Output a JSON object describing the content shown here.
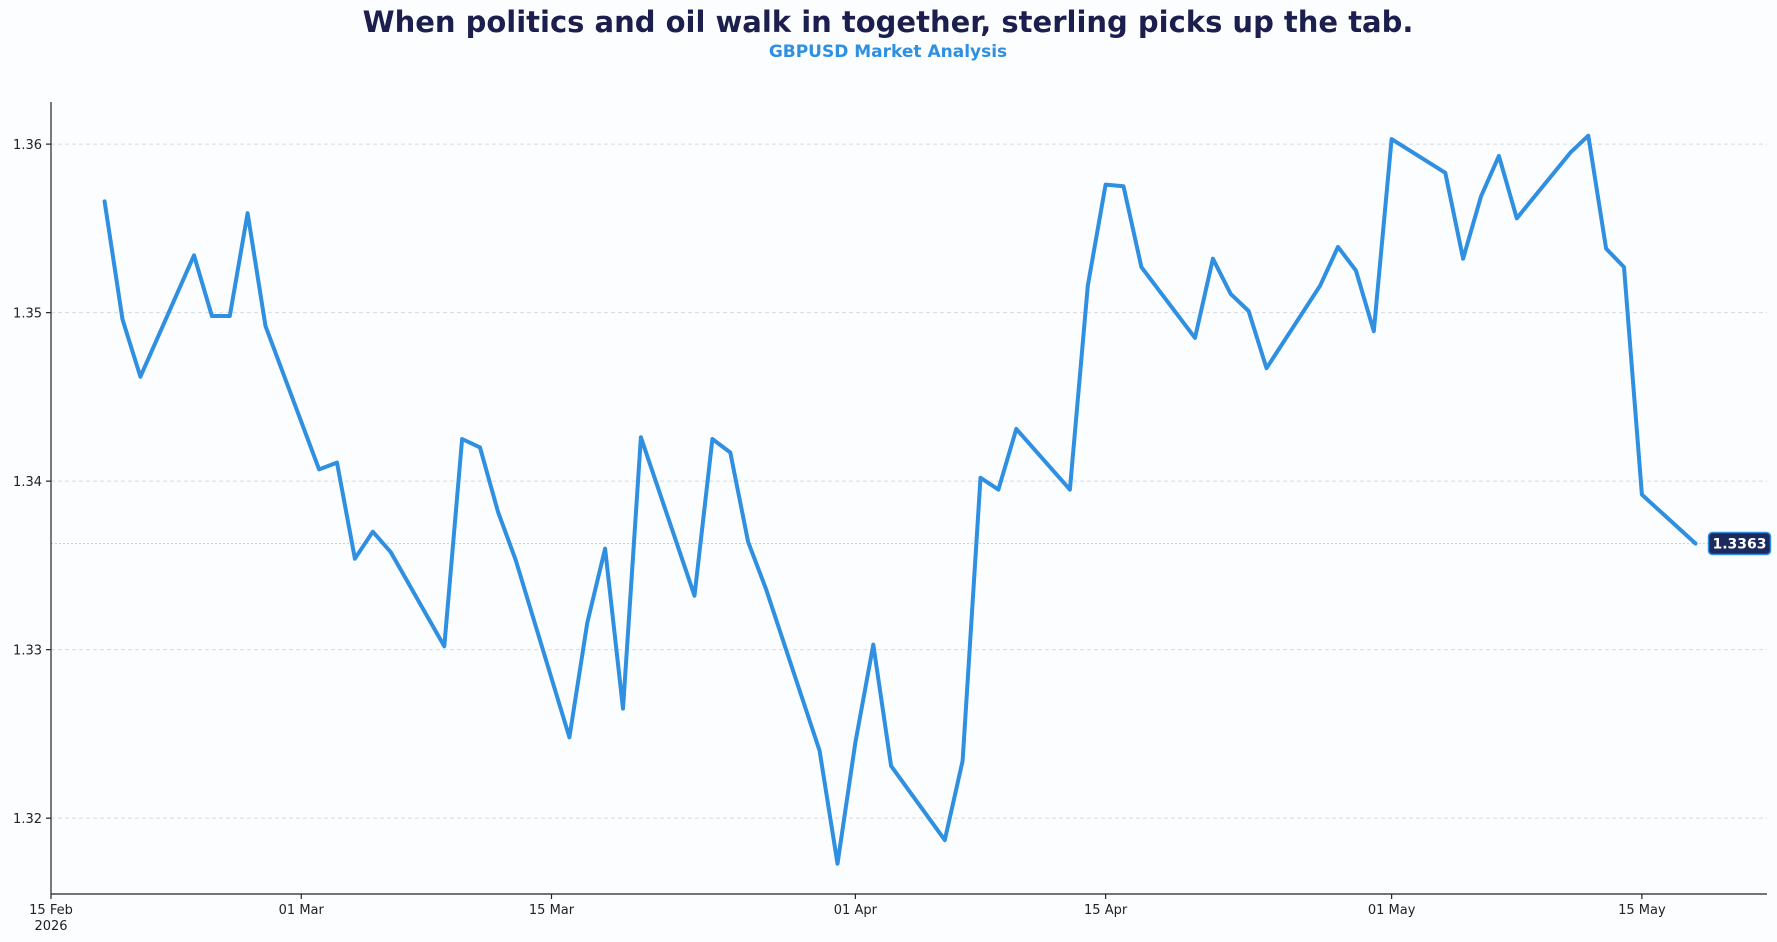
{
  "chart_data": {
    "type": "line",
    "title": "When politics and oil walk in together, sterling picks up the tab.",
    "subtitle": "GBPUSD Market Analysis",
    "xlabel": "",
    "ylabel": "",
    "x_ticks": [
      {
        "date": "2026-02-15",
        "label": "15 Feb",
        "sublabel": "2026"
      },
      {
        "date": "2026-03-01",
        "label": "01 Mar"
      },
      {
        "date": "2026-03-15",
        "label": "15 Mar"
      },
      {
        "date": "2026-04-01",
        "label": "01 Apr"
      },
      {
        "date": "2026-04-15",
        "label": "15 Apr"
      },
      {
        "date": "2026-05-01",
        "label": "01 May"
      },
      {
        "date": "2026-05-15",
        "label": "15 May"
      }
    ],
    "y_ticks": [
      "1.32",
      "1.33",
      "1.34",
      "1.35",
      "1.36"
    ],
    "xlim": [
      "2026-02-15",
      "2026-05-22"
    ],
    "ylim": [
      1.3155,
      1.3625
    ],
    "grid": "horizontal",
    "line_color": "#2f8fe0",
    "last_value_label": "1.3363",
    "series": [
      {
        "x": [
          "2026-02-18",
          "2026-02-19",
          "2026-02-20",
          "2026-02-23",
          "2026-02-24",
          "2026-02-25",
          "2026-02-26",
          "2026-02-27",
          "2026-03-02",
          "2026-03-03",
          "2026-03-04",
          "2026-03-05",
          "2026-03-06",
          "2026-03-09",
          "2026-03-10",
          "2026-03-11",
          "2026-03-12",
          "2026-03-13",
          "2026-03-16",
          "2026-03-17",
          "2026-03-18",
          "2026-03-19",
          "2026-03-20",
          "2026-03-23",
          "2026-03-24",
          "2026-03-25",
          "2026-03-26",
          "2026-03-27",
          "2026-03-30",
          "2026-03-31",
          "2026-04-01",
          "2026-04-02",
          "2026-04-03",
          "2026-04-06",
          "2026-04-07",
          "2026-04-08",
          "2026-04-09",
          "2026-04-10",
          "2026-04-13",
          "2026-04-14",
          "2026-04-15",
          "2026-04-16",
          "2026-04-17",
          "2026-04-20",
          "2026-04-21",
          "2026-04-22",
          "2026-04-23",
          "2026-04-24",
          "2026-04-27",
          "2026-04-28",
          "2026-04-29",
          "2026-04-30",
          "2026-05-01",
          "2026-05-04",
          "2026-05-05",
          "2026-05-06",
          "2026-05-07",
          "2026-05-08",
          "2026-05-11",
          "2026-05-12",
          "2026-05-13",
          "2026-05-14",
          "2026-05-15",
          "2026-05-18"
        ],
        "values": [
          1.3566,
          1.3496,
          1.3462,
          1.3534,
          1.3498,
          1.3498,
          1.3559,
          1.3492,
          1.3407,
          1.3411,
          1.3354,
          1.337,
          1.3358,
          1.3302,
          1.3425,
          1.342,
          1.3382,
          1.3353,
          1.3248,
          1.3316,
          1.336,
          1.3265,
          1.3426,
          1.3332,
          1.3425,
          1.3417,
          1.3364,
          1.3336,
          1.324,
          1.3173,
          1.3245,
          1.3303,
          1.3231,
          1.3187,
          1.3234,
          1.3402,
          1.3395,
          1.3431,
          1.3395,
          1.3516,
          1.3576,
          1.3575,
          1.3527,
          1.3485,
          1.3532,
          1.3511,
          1.3501,
          1.3467,
          1.3516,
          1.3539,
          1.3525,
          1.3489,
          1.3603,
          1.3583,
          1.3532,
          1.3569,
          1.3593,
          1.3556,
          1.3595,
          1.3605,
          1.3538,
          1.3527,
          1.3392,
          1.3363
        ]
      }
    ]
  }
}
